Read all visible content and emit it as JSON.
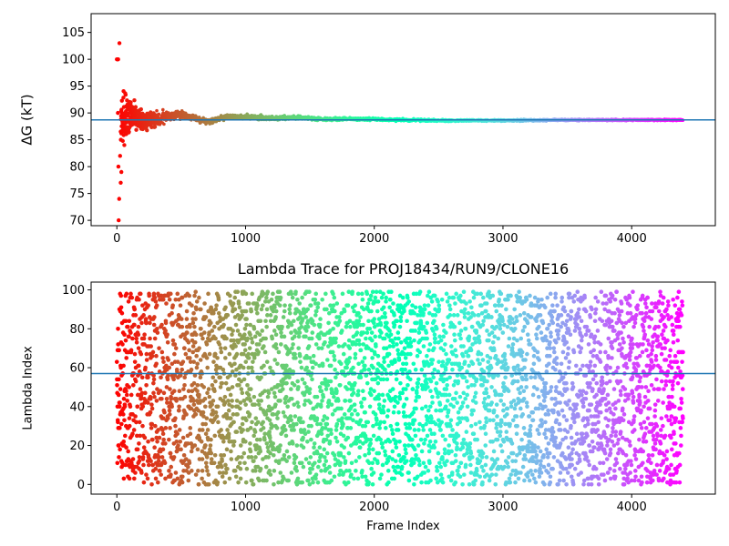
{
  "chart_data": [
    {
      "type": "scatter",
      "title": "",
      "xlabel": "",
      "ylabel": "ΔG (kT)",
      "xlim": [
        -200,
        4650
      ],
      "ylim": [
        69,
        108.5
      ],
      "xticks": [
        0,
        1000,
        2000,
        3000,
        4000
      ],
      "yticks": [
        70,
        75,
        80,
        85,
        90,
        95,
        100,
        105
      ],
      "xtick_labels": [
        "0",
        "1000",
        "2000",
        "3000",
        "4000"
      ],
      "ytick_labels": [
        "70",
        "75",
        "80",
        "85",
        "90",
        "95",
        "100",
        "105"
      ],
      "grid": false,
      "colormap": "rainbow",
      "hline": 88.7,
      "hline_color": "#1f77b4",
      "n_points": 4400,
      "initial_points": [
        {
          "x": 0,
          "y": 100
        },
        {
          "x": 5,
          "y": 100
        },
        {
          "x": 10,
          "y": 100
        },
        {
          "x": 20,
          "y": 103
        },
        {
          "x": 8,
          "y": 90
        },
        {
          "x": 12,
          "y": 80
        },
        {
          "x": 18,
          "y": 74
        },
        {
          "x": 14,
          "y": 70
        },
        {
          "x": 25,
          "y": 82
        },
        {
          "x": 30,
          "y": 77
        },
        {
          "x": 35,
          "y": 79
        }
      ],
      "convergence_series": [
        {
          "x": 50,
          "y": 88.5
        },
        {
          "x": 100,
          "y": 89.5
        },
        {
          "x": 150,
          "y": 89.2
        },
        {
          "x": 200,
          "y": 88.4
        },
        {
          "x": 300,
          "y": 88.8
        },
        {
          "x": 400,
          "y": 89.3
        },
        {
          "x": 500,
          "y": 89.6
        },
        {
          "x": 600,
          "y": 89.1
        },
        {
          "x": 700,
          "y": 88.4
        },
        {
          "x": 800,
          "y": 88.9
        },
        {
          "x": 900,
          "y": 89.4
        },
        {
          "x": 1000,
          "y": 89.2
        },
        {
          "x": 1200,
          "y": 89.0
        },
        {
          "x": 1400,
          "y": 89.2
        },
        {
          "x": 1600,
          "y": 88.8
        },
        {
          "x": 1800,
          "y": 88.9
        },
        {
          "x": 2000,
          "y": 88.8
        },
        {
          "x": 2200,
          "y": 88.7
        },
        {
          "x": 2500,
          "y": 88.6
        },
        {
          "x": 3000,
          "y": 88.6
        },
        {
          "x": 3500,
          "y": 88.7
        },
        {
          "x": 4000,
          "y": 88.7
        },
        {
          "x": 4400,
          "y": 88.7
        }
      ],
      "spread_envelope": [
        {
          "x": 50,
          "s": 3.0
        },
        {
          "x": 100,
          "s": 2.0
        },
        {
          "x": 200,
          "s": 1.2
        },
        {
          "x": 400,
          "s": 0.6
        },
        {
          "x": 800,
          "s": 0.35
        },
        {
          "x": 1500,
          "s": 0.2
        },
        {
          "x": 2500,
          "s": 0.12
        },
        {
          "x": 4400,
          "s": 0.08
        }
      ]
    },
    {
      "type": "scatter",
      "title": "Lambda Trace for PROJ18434/RUN9/CLONE16",
      "xlabel": "Frame Index",
      "ylabel": "Lambda Index",
      "xlim": [
        -200,
        4650
      ],
      "ylim": [
        -5,
        104
      ],
      "xticks": [
        0,
        1000,
        2000,
        3000,
        4000
      ],
      "yticks": [
        0,
        20,
        40,
        60,
        80,
        100
      ],
      "xtick_labels": [
        "0",
        "1000",
        "2000",
        "3000",
        "4000"
      ],
      "ytick_labels": [
        "0",
        "20",
        "40",
        "60",
        "80",
        "100"
      ],
      "grid": false,
      "colormap": "rainbow",
      "hline": 57,
      "hline_color": "#1f77b4",
      "n_points": 4400,
      "lambda_range": [
        0,
        99
      ]
    }
  ]
}
